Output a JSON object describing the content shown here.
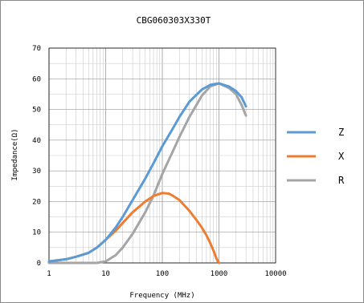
{
  "chart_data": {
    "type": "line",
    "title": "CBG060303X330T",
    "xlabel": "Frequency (MHz)",
    "ylabel": "Impedance(Ω)",
    "xscale": "log",
    "xlim": [
      1,
      10000
    ],
    "ylim": [
      0,
      70
    ],
    "x_ticks": [
      "1",
      "10",
      "100",
      "1000",
      "10000"
    ],
    "y_ticks": [
      "0",
      "10",
      "20",
      "30",
      "40",
      "50",
      "60",
      "70"
    ],
    "grid": true,
    "legend_position": "right",
    "series": [
      {
        "name": "Z",
        "color": "#5b9bd5",
        "x": [
          1,
          2,
          3,
          5,
          7,
          10,
          15,
          20,
          30,
          50,
          70,
          100,
          150,
          200,
          300,
          500,
          700,
          1000,
          1500,
          2000,
          2500,
          3000
        ],
        "y": [
          0.5,
          1.2,
          2,
          3.3,
          5,
          7.5,
          11.5,
          15,
          20.5,
          27.5,
          32.5,
          38,
          43.5,
          47.5,
          52.5,
          56.5,
          58,
          58.5,
          57.5,
          56,
          54,
          51
        ]
      },
      {
        "name": "X",
        "color": "#ed7d31",
        "x": [
          1,
          2,
          3,
          5,
          7,
          10,
          15,
          20,
          30,
          50,
          70,
          100,
          130,
          150,
          200,
          300,
          400,
          500,
          600,
          700,
          800,
          900,
          1000
        ],
        "y": [
          0.5,
          1.2,
          2,
          3.3,
          5,
          7.5,
          10.5,
          13,
          16.5,
          20,
          21.8,
          22.8,
          22.6,
          22,
          20.5,
          17,
          14,
          11.5,
          9,
          6.5,
          4,
          1.5,
          0
        ]
      },
      {
        "name": "R",
        "color": "#a5a5a5",
        "x": [
          1,
          3,
          5,
          7,
          10,
          15,
          20,
          30,
          50,
          70,
          100,
          150,
          200,
          300,
          500,
          700,
          1000,
          1500,
          2000,
          2500,
          3000
        ],
        "y": [
          0,
          0,
          0,
          0,
          0.5,
          2.5,
          5,
          9.5,
          16.5,
          22,
          29,
          36,
          41,
          47.5,
          54.5,
          57.5,
          58.5,
          57,
          55,
          51.5,
          48
        ]
      }
    ]
  }
}
